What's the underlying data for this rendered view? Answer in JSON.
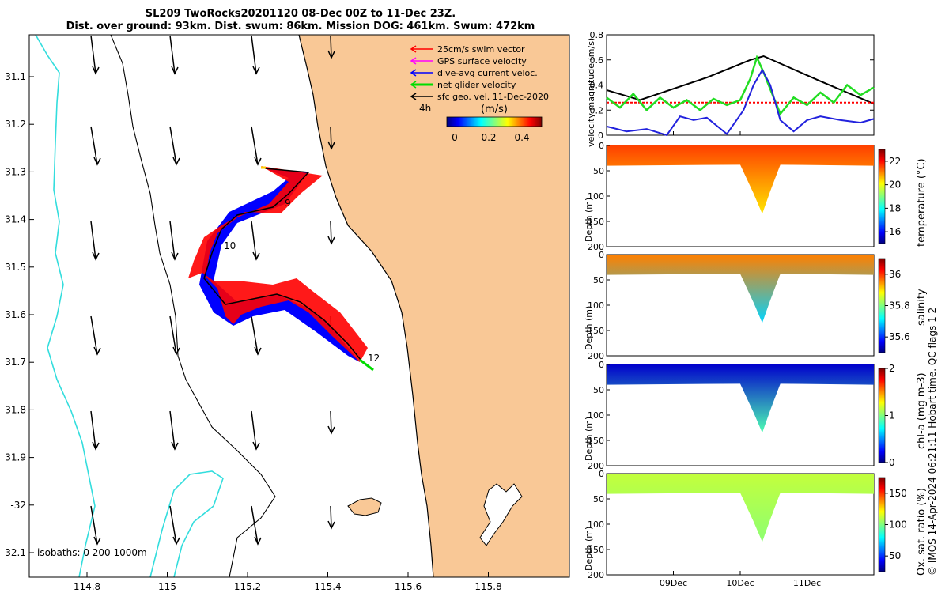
{
  "title": {
    "line1": "SL209 TwoRocks20201120 08-Dec 00Z to 11-Dec 23Z.",
    "line2": "Dist. over ground: 93km. Dist. swum: 86km. Mission DOG: 461km. Swum: 472km"
  },
  "map": {
    "legend": [
      {
        "label": "25cm/s swim vector",
        "color": "#ff0000"
      },
      {
        "label": "GPS surface velocity",
        "color": "#ff00ff"
      },
      {
        "label": "dive-avg current veloc.",
        "color": "#0000ff"
      },
      {
        "label": "net glider velocity",
        "color": "#00dd00"
      },
      {
        "label": "sfc geo. vel. 11-Dec-2020",
        "color": "#000000"
      }
    ],
    "time_step_label": "4h",
    "colorbar": {
      "unit": "(m/s)",
      "ticks": [
        "0",
        "0.2",
        "0.4"
      ]
    },
    "isobaths_label": "isobaths: 0   200  1000m",
    "lat_ticks": [
      "31.1",
      "31.2",
      "31.3",
      "31.4",
      "31.5",
      "31.6",
      "31.7",
      "31.8",
      "31.9",
      "-32",
      "32.1"
    ],
    "lon_ticks": [
      "114.8",
      "115",
      "115.2",
      "115.4",
      "115.6",
      "115.8"
    ],
    "day_labels": [
      "9",
      "10",
      "12"
    ],
    "colors": {
      "land": "#f9c896",
      "coast": "#000000",
      "isobath_1000": "#33dddd",
      "track_blue": "#0000ff",
      "track_red": "#ff0000"
    }
  },
  "chart_data": [
    {
      "type": "line",
      "name": "velocity",
      "ylabel": "velocity magnitude (m/s)",
      "ylim": [
        0,
        0.8
      ],
      "yticks": [
        "0",
        "0.2",
        "0.4",
        "0.6",
        "0.8"
      ],
      "x_days": [
        8,
        12
      ],
      "series": [
        {
          "name": "sfc geo. vel.",
          "color": "#000000",
          "x": [
            8,
            8.5,
            9.5,
            10.15,
            10.35,
            11.2,
            12
          ],
          "y": [
            0.36,
            0.28,
            0.46,
            0.6,
            0.63,
            0.43,
            0.25
          ]
        },
        {
          "name": "swim vector",
          "color": "#ff0000",
          "x": [
            8,
            9,
            10,
            10.3,
            10.5,
            11,
            12
          ],
          "y": [
            0.26,
            0.26,
            0.26,
            0.26,
            0.26,
            0.26,
            0.26
          ]
        },
        {
          "name": "net glider velocity",
          "color": "#22dd22",
          "x": [
            8,
            8.2,
            8.4,
            8.6,
            8.8,
            9,
            9.2,
            9.4,
            9.6,
            9.8,
            10,
            10.15,
            10.25,
            10.35,
            10.5,
            10.6,
            10.8,
            11,
            11.2,
            11.4,
            11.6,
            11.8,
            12
          ],
          "y": [
            0.3,
            0.22,
            0.33,
            0.2,
            0.3,
            0.22,
            0.28,
            0.2,
            0.29,
            0.24,
            0.28,
            0.45,
            0.62,
            0.5,
            0.3,
            0.17,
            0.3,
            0.24,
            0.34,
            0.26,
            0.4,
            0.32,
            0.38
          ]
        },
        {
          "name": "dive-avg current",
          "color": "#2222dd",
          "x": [
            8,
            8.3,
            8.6,
            8.9,
            9.1,
            9.3,
            9.5,
            9.8,
            10.05,
            10.2,
            10.33,
            10.45,
            10.6,
            10.8,
            11,
            11.2,
            11.5,
            11.8,
            12
          ],
          "y": [
            0.07,
            0.03,
            0.05,
            0.0,
            0.15,
            0.12,
            0.14,
            0.01,
            0.2,
            0.4,
            0.52,
            0.4,
            0.12,
            0.03,
            0.12,
            0.15,
            0.12,
            0.1,
            0.13
          ]
        }
      ]
    },
    {
      "type": "heatmap",
      "name": "temperature",
      "ylabel": "Depth (m)",
      "colorbar_label": "temperature (°C)",
      "clim": [
        15,
        23
      ],
      "colorbar_ticks": [
        "22",
        "20",
        "18",
        "16"
      ],
      "depth_ticks": [
        "0",
        "50",
        "100",
        "150",
        "200"
      ],
      "surface_value": 21.5,
      "deep_value": 20.2
    },
    {
      "type": "heatmap",
      "name": "salinity",
      "ylabel": "Depth (m)",
      "colorbar_label": "salinity",
      "clim": [
        35.5,
        36.1
      ],
      "colorbar_ticks": [
        "36",
        "35.8",
        "35.6"
      ],
      "depth_ticks": [
        "0",
        "50",
        "100",
        "150",
        "200"
      ],
      "surface_value": 35.95,
      "deep_value": 35.7
    },
    {
      "type": "heatmap",
      "name": "chl-a",
      "ylabel": "Depth (m)",
      "colorbar_label": "chl-a (mg m-3)",
      "clim": [
        0,
        2
      ],
      "colorbar_ticks": [
        "2",
        "1",
        "0"
      ],
      "depth_ticks": [
        "0",
        "50",
        "100",
        "150",
        "200"
      ],
      "surface_value": 0.15,
      "deep_value": 0.9
    },
    {
      "type": "heatmap",
      "name": "oxygen",
      "ylabel": "Depth (m)",
      "colorbar_label": "Ox. sat. ratio (%)",
      "clim": [
        25,
        175
      ],
      "colorbar_ticks": [
        "150",
        "100",
        "50"
      ],
      "depth_ticks": [
        "0",
        "50",
        "100",
        "150",
        "200"
      ],
      "surface_value": 110,
      "deep_value": 102
    }
  ],
  "time_axis": {
    "ticks": [
      "09Dec",
      "10Dec",
      "11Dec"
    ]
  },
  "footer": "© IMOS 14-Apr-2024 06:21:11 Hobart time. QC flags 1  2"
}
